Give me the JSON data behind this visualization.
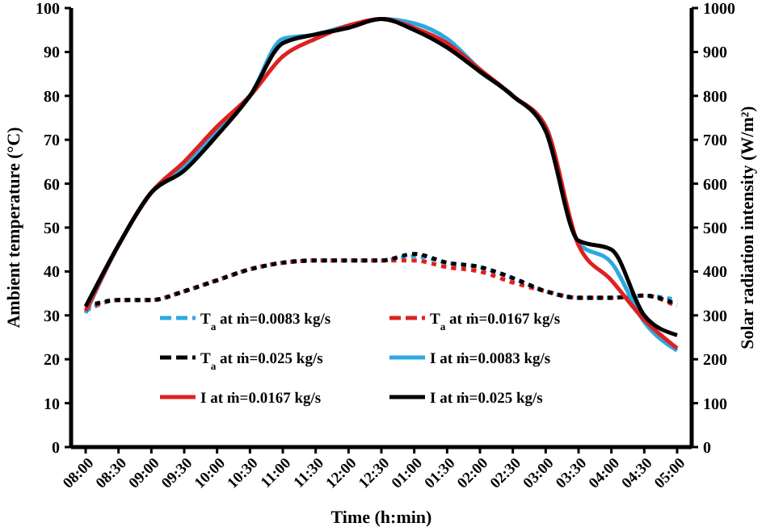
{
  "chart_data": {
    "type": "line",
    "xlabel": "Time (h:min)",
    "ylabel": "Ambient temperature (°C)",
    "y2label": "Solar radiation intensity (W/m²)",
    "categories": [
      "08:00",
      "08:30",
      "09:00",
      "09:30",
      "10:00",
      "10:30",
      "11:00",
      "11:30",
      "12:00",
      "12:30",
      "01:00",
      "01:30",
      "02:00",
      "02:30",
      "03:00",
      "03:30",
      "04:00",
      "04:30",
      "05:00"
    ],
    "ylim": [
      0,
      100
    ],
    "yticks": [
      0,
      10,
      20,
      30,
      40,
      50,
      60,
      70,
      80,
      90,
      100
    ],
    "y2lim": [
      0,
      1000
    ],
    "y2ticks": [
      0,
      100,
      200,
      300,
      400,
      500,
      600,
      700,
      800,
      900,
      1000
    ],
    "grid": false,
    "legend": "bottom",
    "marker": "none",
    "series": [
      {
        "name": "T$_{a}$ at ṁ=0.0083 kg/s",
        "color": "#2ea8e0",
        "line_style": "dashed",
        "values": [
          31,
          33.5,
          33.5,
          35.5,
          38,
          40.5,
          42,
          42.5,
          42.5,
          42.5,
          43.5,
          42,
          41,
          38.5,
          35.5,
          34,
          34,
          34.5,
          33.5
        ]
      },
      {
        "name": "T$_{a}$ at ṁ=0.0167 kg/s",
        "color": "#e02020",
        "line_style": "dashed",
        "values": [
          31.5,
          33.5,
          33.5,
          35.5,
          38,
          40.5,
          42,
          42.5,
          42.5,
          42.5,
          42.5,
          41,
          40,
          37.5,
          35.5,
          34,
          34,
          34.5,
          32
        ]
      },
      {
        "name": "T$_{a}$ at ṁ=0.025 kg/s",
        "color": "#000000",
        "line_style": "dashed",
        "values": [
          32,
          33.5,
          33.5,
          35.5,
          38,
          40.5,
          42,
          42.5,
          42.5,
          42.5,
          44,
          42,
          41,
          38.5,
          35.5,
          34,
          34,
          34.5,
          32.5
        ]
      },
      {
        "name": "I at ṁ=0.0083 kg/s",
        "color": "#2ea8e0",
        "line_style": "solid",
        "axis": "y2",
        "values": [
          305,
          460,
          580,
          640,
          720,
          800,
          930,
          940,
          960,
          975,
          965,
          930,
          860,
          800,
          730,
          465,
          420,
          285,
          220
        ]
      },
      {
        "name": "I at ṁ=0.0167 kg/s",
        "color": "#e02020",
        "line_style": "solid",
        "axis": "y2",
        "values": [
          310,
          460,
          580,
          650,
          730,
          800,
          890,
          930,
          960,
          975,
          955,
          920,
          860,
          800,
          730,
          460,
          380,
          290,
          225
        ]
      },
      {
        "name": "I at ṁ=0.025 kg/s",
        "color": "#000000",
        "line_style": "solid",
        "axis": "y2",
        "values": [
          320,
          460,
          580,
          630,
          710,
          800,
          920,
          940,
          955,
          975,
          950,
          910,
          855,
          800,
          720,
          470,
          450,
          300,
          255
        ]
      }
    ]
  }
}
